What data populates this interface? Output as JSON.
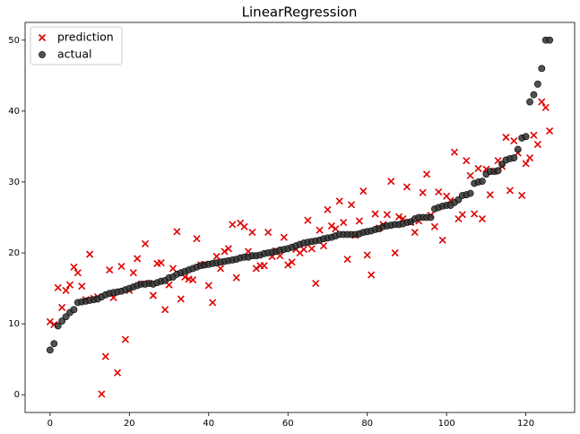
{
  "chart_data": {
    "type": "scatter",
    "title": "LinearRegression",
    "x": [
      0,
      1,
      2,
      3,
      4,
      5,
      6,
      7,
      8,
      9,
      10,
      11,
      12,
      13,
      14,
      15,
      16,
      17,
      18,
      19,
      20,
      21,
      22,
      23,
      24,
      25,
      26,
      27,
      28,
      29,
      30,
      31,
      32,
      33,
      34,
      35,
      36,
      37,
      38,
      39,
      40,
      41,
      42,
      43,
      44,
      45,
      46,
      47,
      48,
      49,
      50,
      51,
      52,
      53,
      54,
      55,
      56,
      57,
      58,
      59,
      60,
      61,
      62,
      63,
      64,
      65,
      66,
      67,
      68,
      69,
      70,
      71,
      72,
      73,
      74,
      75,
      76,
      77,
      78,
      79,
      80,
      81,
      82,
      83,
      84,
      85,
      86,
      87,
      88,
      89,
      90,
      91,
      92,
      93,
      94,
      95,
      96,
      97,
      98,
      99,
      100,
      101,
      102,
      103,
      104,
      105,
      106,
      107,
      108,
      109,
      110,
      111,
      112,
      113,
      114,
      115,
      116,
      117,
      118,
      119,
      120,
      121,
      122,
      123,
      124,
      125,
      126
    ],
    "series": [
      {
        "name": "prediction",
        "color": "#e00000",
        "marker": "x",
        "values": [
          10.3,
          9.9,
          15.1,
          12.3,
          14.7,
          15.5,
          18,
          17.2,
          15.3,
          13.4,
          19.8,
          13.6,
          13.8,
          0.1,
          5.4,
          17.6,
          13.7,
          3.1,
          18.1,
          7.8,
          14.7,
          17.2,
          19.2,
          15.6,
          21.3,
          15.7,
          14,
          18.5,
          18.6,
          12,
          15.5,
          17.8,
          23,
          13.5,
          16.6,
          16.3,
          16.2,
          22,
          18.3,
          18.4,
          15.4,
          13,
          19.5,
          17.8,
          20.2,
          20.6,
          24,
          16.5,
          24.2,
          23.7,
          20.2,
          22.9,
          17.8,
          18.2,
          18.2,
          22.9,
          19.5,
          20.3,
          19.6,
          22.2,
          18.3,
          18.7,
          20.5,
          20,
          20.5,
          24.6,
          20.6,
          15.7,
          23.2,
          21,
          26.1,
          23.8,
          23.4,
          27.3,
          24.3,
          19.1,
          26.8,
          22.5,
          24.5,
          28.7,
          19.7,
          16.9,
          25.5,
          23.5,
          24,
          25.4,
          30.1,
          20,
          25.1,
          24.8,
          29.3,
          24.3,
          22.9,
          24.5,
          28.5,
          31.1,
          25.3,
          23.7,
          28.6,
          21.8,
          28,
          27.4,
          34.2,
          24.8,
          25.4,
          33,
          30.9,
          25.5,
          31.9,
          24.8,
          31.8,
          28.2,
          31.5,
          33,
          32.2,
          36.3,
          28.8,
          35.8,
          34.1,
          28.1,
          32.6,
          33.4,
          36.6,
          35.3,
          41.3,
          40.5,
          37.2
        ]
      },
      {
        "name": "actual",
        "color": "#333333",
        "marker": "o",
        "values": [
          6.3,
          7.2,
          9.7,
          10.4,
          11,
          11.6,
          12,
          13,
          13.1,
          13.2,
          13.3,
          13.4,
          13.5,
          13.8,
          14.1,
          14.3,
          14.4,
          14.5,
          14.6,
          14.8,
          15,
          15.2,
          15.4,
          15.6,
          15.6,
          15.7,
          15.6,
          15.8,
          16,
          16.1,
          16.5,
          16.6,
          17,
          17.2,
          17.4,
          17.6,
          17.8,
          18,
          18.2,
          18.3,
          18.4,
          18.5,
          18.6,
          18.7,
          18.8,
          18.9,
          19,
          19.1,
          19.3,
          19.4,
          19.4,
          19.6,
          19.6,
          19.7,
          19.9,
          20,
          20.1,
          20.2,
          20.4,
          20.5,
          20.6,
          20.8,
          21,
          21.2,
          21.4,
          21.5,
          21.6,
          21.7,
          21.8,
          22,
          22.1,
          22.2,
          22.4,
          22.6,
          22.6,
          22.6,
          22.6,
          22.6,
          22.7,
          22.9,
          23,
          23.1,
          23.3,
          23.4,
          23.7,
          23.8,
          23.9,
          24,
          24,
          24.1,
          24.3,
          24.4,
          24.8,
          25,
          25,
          25,
          25,
          26.2,
          26.4,
          26.6,
          26.7,
          26.7,
          27.1,
          27.5,
          28.1,
          28.2,
          28.4,
          29.8,
          30,
          30.1,
          31.1,
          31.5,
          31.5,
          31.6,
          32.5,
          33.1,
          33.3,
          33.4,
          34.6,
          36.2,
          36.4,
          41.3,
          42.3,
          43.8,
          46,
          50,
          50
        ]
      }
    ],
    "xlim": [
      -6.3,
      132.3
    ],
    "ylim": [
      -2.5,
      52.5
    ],
    "xticks": [
      0,
      20,
      40,
      60,
      80,
      100,
      120
    ],
    "yticks": [
      0,
      10,
      20,
      30,
      40,
      50
    ],
    "grid": false,
    "legend": "upper left"
  }
}
